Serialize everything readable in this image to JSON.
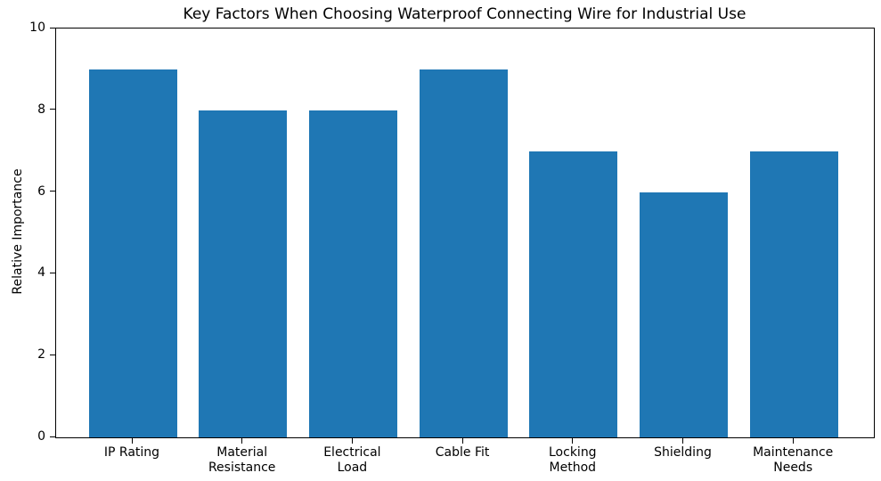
{
  "chart_data": {
    "type": "bar",
    "title": "Key Factors When Choosing Waterproof Connecting Wire for Industrial Use",
    "categories": [
      "IP Rating",
      "Material\nResistance",
      "Electrical\nLoad",
      "Cable Fit",
      "Locking\nMethod",
      "Shielding",
      "Maintenance\nNeeds"
    ],
    "values": [
      9,
      8,
      8,
      9,
      7,
      6,
      7
    ],
    "xlabel": "",
    "ylabel": "Relative Importance",
    "ylim": [
      0,
      10
    ],
    "yticks": [
      0,
      2,
      4,
      6,
      8,
      10
    ],
    "bar_color": "#1f77b4",
    "axis_color": "#000000",
    "background_color": "#ffffff",
    "grid": false,
    "legend": "none"
  }
}
